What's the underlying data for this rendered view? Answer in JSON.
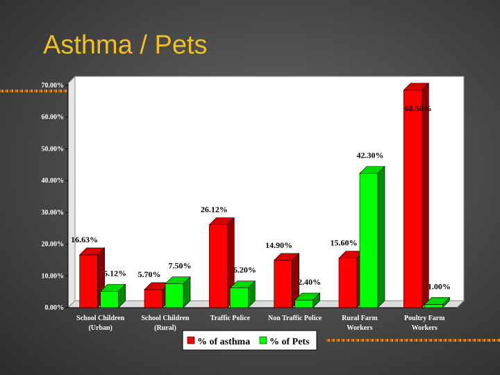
{
  "slide": {
    "title": "Asthma / Pets"
  },
  "colors": {
    "asthma": "#ff0000",
    "pets": "#00ff00",
    "plot_bg": "#ffffff",
    "title": "#f0c020"
  },
  "chart_data": {
    "type": "bar",
    "bar_style": "3d",
    "categories": [
      [
        "School Children",
        "(Urban)"
      ],
      [
        "School Children",
        "(Rural)"
      ],
      [
        "Traffic Police"
      ],
      [
        "Non Traffic Police"
      ],
      [
        "Rural Farm",
        "Workers"
      ],
      [
        "Poultry Farm",
        "Workers"
      ]
    ],
    "series": [
      {
        "name": "% of asthma",
        "values": [
          16.63,
          5.7,
          26.12,
          14.9,
          15.6,
          68.5
        ],
        "labels": [
          "16.63%",
          "5.70%",
          "26.12%",
          "14.90%",
          "15.60%",
          "68.50%"
        ]
      },
      {
        "name": "% of Pets",
        "values": [
          5.12,
          7.5,
          6.2,
          2.4,
          42.3,
          1.0
        ],
        "labels": [
          "5.12%",
          "7.50%",
          "6.20%",
          "2.40%",
          "42.30%",
          "1.00%"
        ]
      }
    ],
    "ylim": [
      0,
      70
    ],
    "yticks": [
      "0.00%",
      "10.00%",
      "20.00%",
      "30.00%",
      "40.00%",
      "50.00%",
      "60.00%",
      "70.00%"
    ],
    "grid": false,
    "legend_position": "bottom"
  }
}
